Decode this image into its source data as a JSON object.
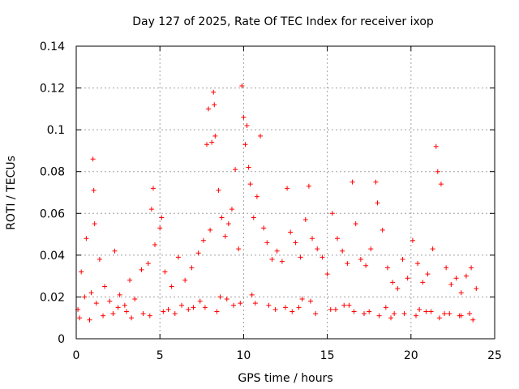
{
  "chart_data": {
    "type": "scatter",
    "title": "Day 127 of 2025, Rate Of TEC Index for receiver ixop",
    "xlabel": "GPS time / hours",
    "ylabel": "ROTI / TECUs",
    "xlim": [
      0,
      25
    ],
    "ylim": [
      0,
      0.14
    ],
    "x_ticks": [
      0,
      5,
      10,
      15,
      20,
      25
    ],
    "y_ticks": [
      0,
      0.02,
      0.04,
      0.06,
      0.08,
      0.1,
      0.12,
      0.14
    ],
    "x_tick_labels": [
      "0",
      "5",
      "10",
      "15",
      "20",
      "25"
    ],
    "y_tick_labels": [
      "0",
      "0.02",
      "0.04",
      "0.06",
      "0.08",
      "0.1",
      "0.12",
      "0.14"
    ],
    "grid": true,
    "marker": "plus",
    "color": "#ff0000",
    "series": [
      {
        "name": "ROTI",
        "x": [
          0.1,
          0.3,
          0.6,
          0.9,
          1.0,
          1.05,
          1.1,
          1.4,
          1.7,
          2.0,
          2.3,
          2.6,
          2.9,
          3.2,
          3.5,
          3.9,
          4.3,
          4.5,
          4.6,
          4.7,
          5.0,
          5.1,
          5.3,
          5.7,
          6.1,
          6.5,
          6.9,
          7.3,
          7.6,
          7.8,
          7.9,
          8.0,
          8.1,
          8.2,
          8.25,
          8.3,
          8.5,
          8.7,
          8.9,
          9.1,
          9.3,
          9.5,
          9.7,
          9.9,
          10.0,
          10.1,
          10.2,
          10.3,
          10.4,
          10.6,
          10.8,
          11.0,
          11.2,
          11.4,
          11.7,
          12.0,
          12.3,
          12.6,
          12.8,
          13.1,
          13.4,
          13.7,
          13.9,
          14.1,
          14.4,
          14.7,
          15.0,
          15.3,
          15.6,
          15.9,
          16.2,
          16.5,
          16.7,
          17.0,
          17.3,
          17.6,
          17.9,
          18.0,
          18.3,
          18.6,
          18.9,
          19.2,
          19.5,
          19.8,
          20.1,
          20.4,
          20.7,
          21.0,
          21.3,
          21.5,
          21.6,
          21.8,
          22.1,
          22.4,
          22.7,
          23.0,
          23.3,
          23.6,
          23.9,
          0.5,
          1.2,
          2.5,
          3.0,
          4.0,
          5.5,
          6.3,
          7.0,
          7.4,
          8.6,
          9.0,
          9.8,
          10.5,
          11.5,
          12.5,
          13.5,
          14.0,
          15.2,
          16.0,
          17.5,
          18.5,
          19.0,
          20.5,
          21.2,
          22.0,
          23.0,
          23.5,
          0.2,
          0.8,
          1.6,
          2.2,
          3.3,
          4.4,
          5.2,
          5.9,
          6.7,
          7.7,
          8.4,
          9.4,
          10.7,
          11.9,
          12.9,
          13.3,
          14.3,
          15.5,
          16.3,
          16.6,
          17.2,
          18.1,
          18.8,
          19.6,
          20.3,
          20.9,
          21.7,
          22.3,
          22.9,
          23.7
        ],
        "y": [
          0.014,
          0.032,
          0.048,
          0.022,
          0.086,
          0.071,
          0.055,
          0.038,
          0.025,
          0.018,
          0.042,
          0.021,
          0.016,
          0.028,
          0.019,
          0.033,
          0.036,
          0.062,
          0.072,
          0.045,
          0.053,
          0.058,
          0.032,
          0.025,
          0.039,
          0.028,
          0.034,
          0.041,
          0.047,
          0.093,
          0.11,
          0.052,
          0.094,
          0.118,
          0.112,
          0.097,
          0.071,
          0.058,
          0.049,
          0.055,
          0.062,
          0.081,
          0.043,
          0.121,
          0.106,
          0.093,
          0.102,
          0.082,
          0.074,
          0.058,
          0.068,
          0.097,
          0.053,
          0.046,
          0.038,
          0.042,
          0.037,
          0.072,
          0.051,
          0.046,
          0.039,
          0.057,
          0.073,
          0.048,
          0.043,
          0.039,
          0.031,
          0.06,
          0.048,
          0.042,
          0.036,
          0.075,
          0.055,
          0.038,
          0.035,
          0.043,
          0.075,
          0.065,
          0.052,
          0.034,
          0.027,
          0.024,
          0.038,
          0.029,
          0.047,
          0.036,
          0.027,
          0.031,
          0.043,
          0.092,
          0.08,
          0.074,
          0.034,
          0.026,
          0.029,
          0.022,
          0.03,
          0.034,
          0.024,
          0.02,
          0.017,
          0.015,
          0.013,
          0.012,
          0.014,
          0.016,
          0.015,
          0.018,
          0.02,
          0.019,
          0.017,
          0.021,
          0.016,
          0.015,
          0.019,
          0.018,
          0.014,
          0.016,
          0.013,
          0.015,
          0.012,
          0.014,
          0.013,
          0.012,
          0.011,
          0.012,
          0.01,
          0.009,
          0.011,
          0.012,
          0.01,
          0.011,
          0.013,
          0.012,
          0.014,
          0.015,
          0.013,
          0.016,
          0.017,
          0.014,
          0.013,
          0.015,
          0.012,
          0.014,
          0.016,
          0.013,
          0.012,
          0.011,
          0.01,
          0.012,
          0.011,
          0.013,
          0.01,
          0.012,
          0.011,
          0.009
        ]
      }
    ]
  }
}
